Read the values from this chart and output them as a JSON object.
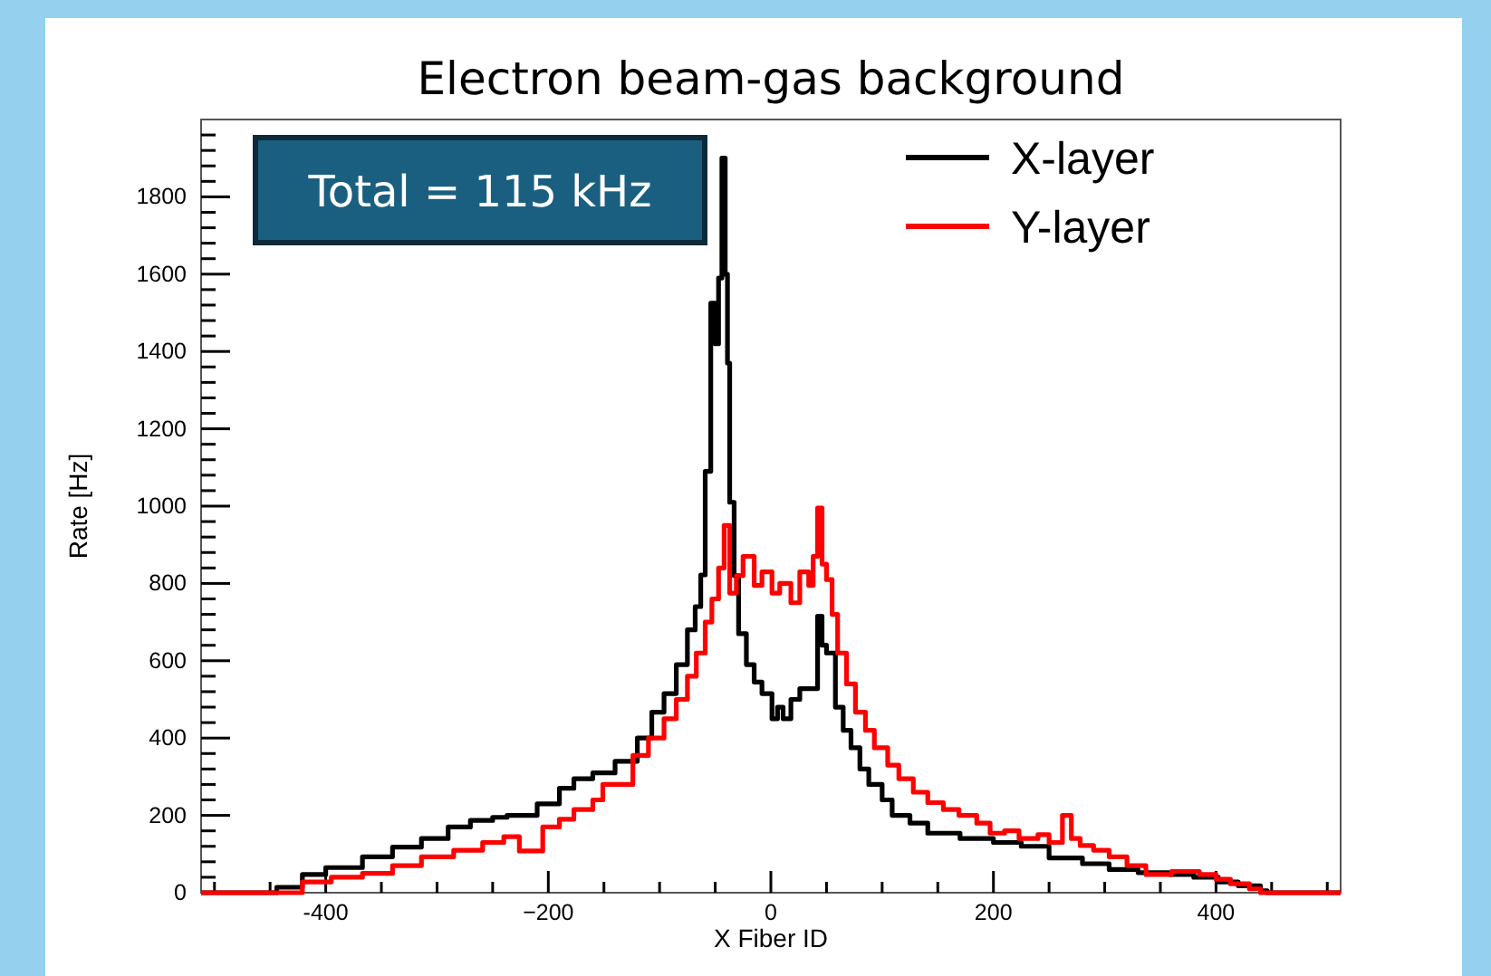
{
  "chart_data": {
    "type": "step",
    "title": "Electron beam-gas background",
    "xlabel": "X Fiber ID",
    "ylabel": "Rate [Hz]",
    "xlim": [
      -512,
      512
    ],
    "ylim": [
      0,
      2000
    ],
    "xticks": [
      {
        "value": -500,
        "label": null
      },
      {
        "value": -450,
        "label": null
      },
      -400,
      {
        "value": -350,
        "label": null
      },
      {
        "value": -300,
        "label": null
      },
      {
        "value": -250,
        "label": null
      },
      {
        "value": -200,
        "label": "−200"
      },
      {
        "value": -150,
        "label": null
      },
      {
        "value": -100,
        "label": null
      },
      {
        "value": -50,
        "label": null
      },
      0,
      {
        "value": 50,
        "label": null
      },
      {
        "value": 100,
        "label": null
      },
      {
        "value": 150,
        "label": null
      },
      200,
      {
        "value": 250,
        "label": null
      },
      {
        "value": 300,
        "label": null
      },
      {
        "value": 350,
        "label": null
      },
      400,
      {
        "value": 450,
        "label": null
      },
      {
        "value": 500,
        "label": null
      }
    ],
    "yticks": [
      0,
      {
        "value": 40,
        "label": null
      },
      {
        "value": 80,
        "label": null
      },
      {
        "value": 120,
        "label": null
      },
      {
        "value": 160,
        "label": null
      },
      200,
      {
        "value": 240,
        "label": null
      },
      {
        "value": 280,
        "label": null
      },
      {
        "value": 320,
        "label": null
      },
      {
        "value": 360,
        "label": null
      },
      400,
      {
        "value": 440,
        "label": null
      },
      {
        "value": 480,
        "label": null
      },
      {
        "value": 520,
        "label": null
      },
      {
        "value": 560,
        "label": null
      },
      600,
      {
        "value": 640,
        "label": null
      },
      {
        "value": 680,
        "label": null
      },
      {
        "value": 720,
        "label": null
      },
      {
        "value": 760,
        "label": null
      },
      800,
      {
        "value": 840,
        "label": null
      },
      {
        "value": 880,
        "label": null
      },
      {
        "value": 920,
        "label": null
      },
      {
        "value": 960,
        "label": null
      },
      1000,
      {
        "value": 1040,
        "label": null
      },
      {
        "value": 1080,
        "label": null
      },
      {
        "value": 1120,
        "label": null
      },
      {
        "value": 1160,
        "label": null
      },
      1200,
      {
        "value": 1240,
        "label": null
      },
      {
        "value": 1280,
        "label": null
      },
      {
        "value": 1320,
        "label": null
      },
      {
        "value": 1360,
        "label": null
      },
      1400,
      {
        "value": 1440,
        "label": null
      },
      {
        "value": 1480,
        "label": null
      },
      {
        "value": 1520,
        "label": null
      },
      {
        "value": 1560,
        "label": null
      },
      1600,
      {
        "value": 1640,
        "label": null
      },
      {
        "value": 1680,
        "label": null
      },
      {
        "value": 1720,
        "label": null
      },
      {
        "value": 1760,
        "label": null
      },
      1800,
      {
        "value": 1840,
        "label": null
      },
      {
        "value": 1880,
        "label": null
      },
      {
        "value": 1920,
        "label": null
      },
      {
        "value": 1960,
        "label": null
      }
    ],
    "legend": "top right",
    "grid": false,
    "annotations": [
      "Total = 115 kHz"
    ],
    "series": [
      {
        "name": "X-layer",
        "color": "#000000",
        "x": [
          -512,
          -450,
          -444,
          -421,
          -400,
          -367,
          -340,
          -314,
          -290,
          -270,
          -250,
          -237,
          -210,
          -190,
          -177,
          -160,
          -140,
          -120,
          -107,
          -96,
          -85,
          -75,
          -68,
          -63,
          -59,
          -54,
          -50,
          -47,
          -44,
          -41,
          -39,
          -37,
          -33,
          -29,
          -22,
          -15,
          -8,
          1,
          6,
          11,
          18,
          26,
          34,
          42,
          46,
          50,
          58,
          65,
          72,
          80,
          88,
          100,
          109,
          125,
          141,
          170,
          200,
          225,
          250,
          280,
          304,
          330,
          359,
          380,
          402,
          420,
          440,
          446,
          512
        ],
        "values": [
          0,
          0,
          14,
          47,
          65,
          93,
          118,
          140,
          170,
          187,
          195,
          200,
          230,
          270,
          295,
          310,
          340,
          400,
          467,
          515,
          590,
          680,
          740,
          822,
          1090,
          1525,
          1420,
          1590,
          1900,
          1600,
          1370,
          1010,
          820,
          670,
          590,
          545,
          515,
          450,
          480,
          450,
          500,
          528,
          528,
          715,
          640,
          620,
          480,
          420,
          375,
          320,
          280,
          240,
          200,
          180,
          154,
          140,
          130,
          120,
          90,
          75,
          60,
          52,
          47,
          40,
          28,
          18,
          5,
          0,
          0
        ]
      },
      {
        "name": "Y-layer",
        "color": "#ff0000",
        "x": [
          -512,
          -440,
          -421,
          -395,
          -367,
          -340,
          -314,
          -285,
          -259,
          -240,
          -226,
          -205,
          -190,
          -177,
          -160,
          -151,
          -124,
          -110,
          -96,
          -85,
          -75,
          -67,
          -59,
          -53,
          -47,
          -42,
          -37,
          -31,
          -25,
          -15,
          -8,
          1,
          8,
          18,
          26,
          34,
          38,
          42,
          46,
          50,
          55,
          60,
          68,
          76,
          85,
          93,
          105,
          115,
          128,
          141,
          155,
          169,
          185,
          197,
          210,
          223,
          240,
          250,
          262,
          270,
          278,
          290,
          304,
          320,
          337,
          360,
          385,
          400,
          413,
          430,
          440,
          512
        ],
        "values": [
          0,
          0,
          28,
          40,
          50,
          70,
          93,
          110,
          130,
          145,
          108,
          170,
          190,
          215,
          240,
          280,
          355,
          400,
          450,
          500,
          560,
          620,
          700,
          760,
          840,
          950,
          775,
          820,
          870,
          795,
          830,
          775,
          800,
          750,
          830,
          795,
          870,
          995,
          850,
          810,
          720,
          620,
          540,
          467,
          420,
          375,
          330,
          295,
          260,
          233,
          215,
          200,
          180,
          154,
          160,
          140,
          150,
          130,
          200,
          140,
          122,
          110,
          93,
          70,
          47,
          55,
          47,
          35,
          23,
          10,
          0,
          0
        ]
      }
    ]
  }
}
